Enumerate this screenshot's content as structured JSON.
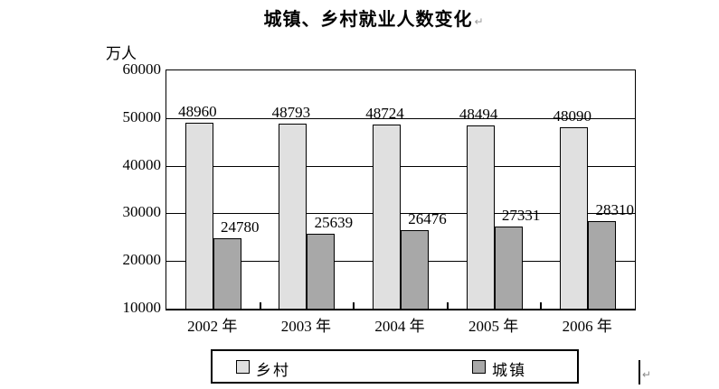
{
  "title": {
    "text": "城镇、乡村就业人数变化",
    "paragraph_mark": "↵"
  },
  "chart_data": {
    "type": "bar",
    "title": "城镇、乡村就业人数变化",
    "unit_label": "万人",
    "categories": [
      "2002 年",
      "2003 年",
      "2004 年",
      "2005 年",
      "2006 年"
    ],
    "series": [
      {
        "key": "rural",
        "name": "乡村",
        "color": "#e0e0e0",
        "values": [
          48960,
          48793,
          48724,
          48494,
          48090
        ]
      },
      {
        "key": "urban",
        "name": "城镇",
        "color": "#a8a8a8",
        "values": [
          24780,
          25639,
          26476,
          27331,
          28310
        ]
      }
    ],
    "ylabel": "万人",
    "ylim": [
      10000,
      60000
    ],
    "ytick_step": 10000,
    "grid": true,
    "legend_position": "bottom"
  },
  "cursor": {
    "mark": "↵"
  }
}
